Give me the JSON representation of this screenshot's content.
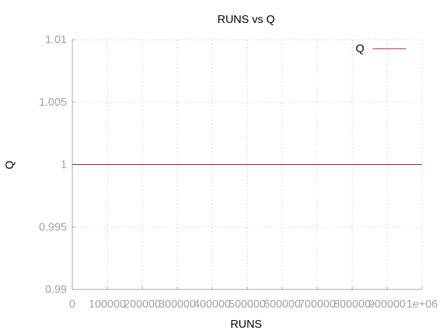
{
  "chart_data": {
    "type": "line",
    "title": "RUNS vs Q",
    "xlabel": "RUNS",
    "ylabel": "Q",
    "xlim": [
      0,
      1000000
    ],
    "ylim": [
      0.99,
      1.01
    ],
    "x_ticks": [
      0,
      100000,
      200000,
      300000,
      400000,
      500000,
      600000,
      700000,
      800000,
      900000,
      1000000
    ],
    "x_tick_labels": [
      "0",
      "100000",
      "200000",
      "300000",
      "400000",
      "500000",
      "600000",
      "700000",
      "800000",
      "900000",
      "1e+06"
    ],
    "y_ticks": [
      0.99,
      0.995,
      1,
      1.005,
      1.01
    ],
    "y_tick_labels": [
      "0.99",
      "0.995",
      "1",
      "1.005",
      "1.01"
    ],
    "grid": true,
    "legend_position": "top-right",
    "series": [
      {
        "name": "Q",
        "color": "#cc0000",
        "x": [
          0,
          1000000
        ],
        "y": [
          1,
          1
        ]
      }
    ]
  }
}
